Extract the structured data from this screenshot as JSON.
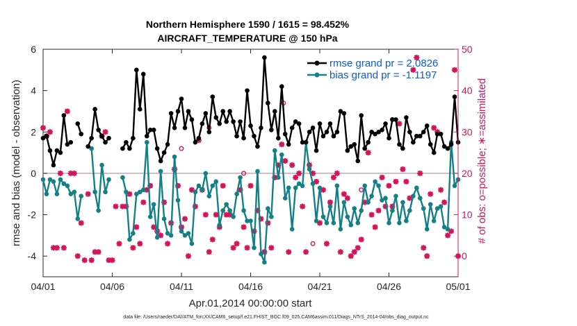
{
  "chart_data": {
    "type": "line",
    "title_line1": "Northern Hemisphere 1590 / 1615 = 98.452%",
    "title_line2": "AIRCRAFT_TEMPERATURE @ 150 hPa",
    "xlabel": "Apr.01,2014 00:00:00 start",
    "ylabel_left": "rmse and bias (model - observation)",
    "ylabel_right": "# of obs: o=possible; ∗=assimilated",
    "xlim": [
      0,
      120
    ],
    "ylim_left": [
      -5,
      6
    ],
    "ylim_right": [
      -5,
      50
    ],
    "x_ticks": [
      {
        "x": 0,
        "label": "04/01"
      },
      {
        "x": 20,
        "label": "04/06"
      },
      {
        "x": 40,
        "label": "04/11"
      },
      {
        "x": 60,
        "label": "04/16"
      },
      {
        "x": 80,
        "label": "04/21"
      },
      {
        "x": 100,
        "label": "04/26"
      },
      {
        "x": 120,
        "label": "05/01"
      }
    ],
    "y_ticks_left": [
      "-4",
      "-2",
      "0",
      "2",
      "4",
      "6"
    ],
    "y_tick_values_left": [
      -4,
      -2,
      0,
      2,
      4,
      6
    ],
    "y_ticks_right": [
      "0",
      "10",
      "20",
      "30",
      "40",
      "50"
    ],
    "y_tick_values_right": [
      0,
      10,
      20,
      30,
      40,
      50
    ],
    "zero_line_left": 0,
    "series": [
      {
        "name": "rmse grand pr = 2.0826",
        "color": "#000000",
        "x": [
          0,
          1,
          2,
          3,
          4,
          5,
          6,
          7,
          8,
          9,
          10,
          11,
          12,
          13,
          14,
          15,
          16,
          17,
          18,
          19,
          20,
          21,
          22,
          23,
          24,
          25,
          26,
          27,
          28,
          29,
          30,
          31,
          32,
          33,
          34,
          35,
          36,
          37,
          38,
          39,
          40,
          41,
          42,
          43,
          44,
          45,
          46,
          47,
          48,
          49,
          50,
          51,
          52,
          53,
          54,
          55,
          56,
          57,
          58,
          59,
          60,
          61,
          62,
          63,
          64,
          65,
          66,
          67,
          68,
          69,
          70,
          71,
          72,
          73,
          74,
          75,
          76,
          77,
          78,
          79,
          80,
          81,
          82,
          83,
          84,
          85,
          86,
          87,
          88,
          89,
          90,
          91,
          92,
          93,
          94,
          95,
          96,
          97,
          98,
          99,
          100,
          101,
          102,
          103,
          104,
          105,
          106,
          107,
          108,
          109,
          110,
          111,
          112,
          113,
          114,
          115,
          116,
          117,
          118,
          119,
          120
        ],
        "values": [
          1.7,
          1.8,
          1.1,
          0.4,
          1.1,
          1.0,
          2.8,
          1.4,
          1.5,
          null,
          2.4,
          1.9,
          null,
          1.3,
          1.7,
          3.1,
          2.1,
          1.8,
          1.5,
          1.7,
          null,
          null,
          null,
          1.2,
          1.5,
          1.2,
          1.7,
          5.0,
          3.1,
          4.8,
          1.8,
          2.1,
          2.1,
          1.2,
          0.6,
          1.0,
          1.4,
          2.9,
          2.2,
          3.0,
          3.6,
          2.2,
          3.0,
          2.6,
          1.5,
          1.7,
          2.4,
          2.9,
          2.0,
          3.7,
          2.7,
          2.4,
          3.0,
          2.5,
          3.0,
          2.5,
          1.8,
          2.5,
          1.7,
          4.0,
          2.3,
          1.8,
          1.3,
          2.2,
          5.6,
          3.4,
          2.1,
          3.0,
          1.7,
          4.2,
          1.9,
          1.4,
          2.2,
          2.5,
          2.4,
          1.5,
          1.5,
          2.0,
          2.2,
          1.1,
          2.4,
          1.8,
          2.0,
          2.4,
          1.8,
          2.0,
          3.0,
          2.9,
          1.1,
          1.3,
          1.4,
          0.6,
          2.8,
          1.2,
          1.5,
          2.0,
          1.9,
          2.0,
          2.1,
          2.4,
          1.7,
          2.6,
          2.6,
          1.4,
          1.2,
          2.7,
          2.0,
          1.5,
          1.8,
          1.8,
          2.0,
          2.3,
          1.4,
          1.0,
          1.9,
          1.9,
          1.3,
          1.2,
          1.4,
          3.7,
          1.5
        ],
        "linestyle": "solid"
      },
      {
        "name": "bias grand pr = -1.1197",
        "color": "#137f86",
        "x": [
          0,
          1,
          2,
          3,
          4,
          5,
          6,
          7,
          8,
          9,
          10,
          11,
          12,
          13,
          14,
          15,
          16,
          17,
          18,
          19,
          20,
          21,
          22,
          23,
          24,
          25,
          26,
          27,
          28,
          29,
          30,
          31,
          32,
          33,
          34,
          35,
          36,
          37,
          38,
          39,
          40,
          41,
          42,
          43,
          44,
          45,
          46,
          47,
          48,
          49,
          50,
          51,
          52,
          53,
          54,
          55,
          56,
          57,
          58,
          59,
          60,
          61,
          62,
          63,
          64,
          65,
          66,
          67,
          68,
          69,
          70,
          71,
          72,
          73,
          74,
          75,
          76,
          77,
          78,
          79,
          80,
          81,
          82,
          83,
          84,
          85,
          86,
          87,
          88,
          89,
          90,
          91,
          92,
          93,
          94,
          95,
          96,
          97,
          98,
          99,
          100,
          101,
          102,
          103,
          104,
          105,
          106,
          107,
          108,
          109,
          110,
          111,
          112,
          113,
          114,
          115,
          116,
          117,
          118,
          119,
          120
        ],
        "values": [
          -0.3,
          -1.0,
          -0.3,
          -0.4,
          -1.0,
          -0.3,
          -0.5,
          -0.6,
          -1.0,
          -0.9,
          -2.2,
          -1.1,
          null,
          null,
          1.2,
          -0.9,
          -1.8,
          0.4,
          -0.9,
          -0.3,
          null,
          null,
          null,
          -0.2,
          -0.9,
          -3.2,
          -2.9,
          -1.0,
          -0.9,
          -0.8,
          1.5,
          -2.1,
          -1.5,
          -3.1,
          0.1,
          -2.2,
          -2.9,
          -3.0,
          0.8,
          -1.3,
          -2.8,
          -3.0,
          -2.9,
          -3.4,
          -0.9,
          -0.6,
          -0.8,
          0.0,
          -1.1,
          -0.6,
          -0.4,
          -2.5,
          -1.8,
          -1.5,
          -1.8,
          -2.1,
          -1.0,
          -0.2,
          -1.8,
          -2.3,
          -2.3,
          -3.6,
          0.1,
          -3.9,
          -4.3,
          -1.7,
          -2.1,
          1.1,
          -0.2,
          0.9,
          -1.2,
          -0.7,
          -2.7,
          -0.7,
          -0.5,
          -0.6,
          1.5,
          0.2,
          -0.5,
          -2.3,
          -0.7,
          -2.1,
          -2.4,
          -1.6,
          -2.4,
          -0.6,
          -2.7,
          -1.4,
          -2.1,
          -2.5,
          -1.7,
          -2.4,
          -1.8,
          -0.6,
          -1.4,
          -1.1,
          -0.4,
          -0.6,
          -1.3,
          -1.2,
          -2.4,
          -1.8,
          -1.1,
          -2.4,
          -1.4,
          -2.3,
          -1.8,
          -1.1,
          -0.7,
          -1.2,
          -1.7,
          -2.7,
          -1.5,
          -2.3,
          -1.7,
          -1.6,
          -2.6,
          -2.7,
          1.5,
          -0.6,
          -0.3
        ],
        "linestyle": "solid"
      }
    ],
    "obs_possible": {
      "name": "possible obs count (o)",
      "color": "#d4145a",
      "axis": "right",
      "points": [
        [
          69.5,
          37
        ],
        [
          40,
          26
        ],
        [
          48,
          31
        ],
        [
          58,
          20
        ],
        [
          78,
          3
        ],
        [
          92,
          16
        ],
        [
          101,
          33
        ]
      ]
    },
    "obs_assimilated": {
      "name": "assimilated obs count (∗)",
      "color": "#d4145a",
      "axis": "right",
      "points": [
        [
          0,
          31
        ],
        [
          1,
          29
        ],
        [
          2,
          30
        ],
        [
          3,
          2
        ],
        [
          4,
          2
        ],
        [
          5,
          20
        ],
        [
          6,
          2
        ],
        [
          7,
          35
        ],
        [
          8,
          20
        ],
        [
          9,
          20
        ],
        [
          10,
          0
        ],
        [
          11,
          8
        ],
        [
          12,
          -1
        ],
        [
          13,
          15
        ],
        [
          14,
          -1
        ],
        [
          15,
          1
        ],
        [
          16,
          1
        ],
        [
          17,
          29
        ],
        [
          18,
          30
        ],
        [
          19,
          -1
        ],
        [
          20,
          -1
        ],
        [
          21,
          12
        ],
        [
          22,
          3
        ],
        [
          23,
          12
        ],
        [
          24,
          12
        ],
        [
          25,
          15
        ],
        [
          26,
          2
        ],
        [
          27,
          7
        ],
        [
          28,
          3
        ],
        [
          29,
          13
        ],
        [
          30,
          16
        ],
        [
          31,
          17
        ],
        [
          32,
          7
        ],
        [
          33,
          6
        ],
        [
          34,
          5
        ],
        [
          35,
          13
        ],
        [
          36,
          3
        ],
        [
          37,
          8
        ],
        [
          38,
          21
        ],
        [
          39,
          17
        ],
        [
          40,
          7
        ],
        [
          41,
          9
        ],
        [
          42,
          0
        ],
        [
          43,
          16
        ],
        [
          44,
          12
        ],
        [
          45,
          28
        ],
        [
          46,
          16
        ],
        [
          47,
          10
        ],
        [
          48,
          1
        ],
        [
          49,
          4
        ],
        [
          50,
          10
        ],
        [
          51,
          7
        ],
        [
          52,
          17
        ],
        [
          53,
          10
        ],
        [
          54,
          10
        ],
        [
          55,
          2
        ],
        [
          56,
          3
        ],
        [
          57,
          16
        ],
        [
          58,
          7
        ],
        [
          59,
          2
        ],
        [
          60,
          17
        ],
        [
          61,
          6
        ],
        [
          62,
          11
        ],
        [
          63,
          9
        ],
        [
          64,
          1
        ],
        [
          65,
          8
        ],
        [
          66,
          2
        ],
        [
          67,
          19
        ],
        [
          68,
          22
        ],
        [
          69,
          27
        ],
        [
          70,
          23
        ],
        [
          71,
          1
        ],
        [
          72,
          22
        ],
        [
          73,
          19
        ],
        [
          74,
          20
        ],
        [
          75,
          12
        ],
        [
          76,
          1
        ],
        [
          77,
          22
        ],
        [
          78,
          20
        ],
        [
          79,
          18
        ],
        [
          80,
          8
        ],
        [
          81,
          16
        ],
        [
          82,
          3
        ],
        [
          83,
          13
        ],
        [
          84,
          19
        ],
        [
          85,
          20
        ],
        [
          86,
          1
        ],
        [
          87,
          15
        ],
        [
          88,
          14
        ],
        [
          89,
          0
        ],
        [
          90,
          1
        ],
        [
          91,
          2
        ],
        [
          92,
          4
        ],
        [
          93,
          13
        ],
        [
          94,
          25
        ],
        [
          95,
          10
        ],
        [
          96,
          7
        ],
        [
          97,
          11
        ],
        [
          98,
          19
        ],
        [
          99,
          12
        ],
        [
          100,
          17
        ],
        [
          101,
          12
        ],
        [
          102,
          18
        ],
        [
          103,
          32
        ],
        [
          104,
          21
        ],
        [
          105,
          18
        ],
        [
          106,
          14
        ],
        [
          107,
          45
        ],
        [
          108,
          48
        ],
        [
          109,
          20
        ],
        [
          110,
          2
        ],
        [
          111,
          0
        ],
        [
          112,
          15
        ],
        [
          113,
          31
        ],
        [
          114,
          30
        ],
        [
          115,
          16
        ],
        [
          116,
          13
        ],
        [
          117,
          5
        ],
        [
          118,
          6
        ],
        [
          119,
          45
        ],
        [
          120,
          0
        ]
      ]
    }
  },
  "footer": {
    "data_file": "data file: /Users/raeder/DAI/ATM_forcXX/CAM6_setup/f.e21.FHIST_BGC.f09_025.CAM6assim.011/Diags_NTrS_2014-04/obs_diag_output.nc"
  }
}
